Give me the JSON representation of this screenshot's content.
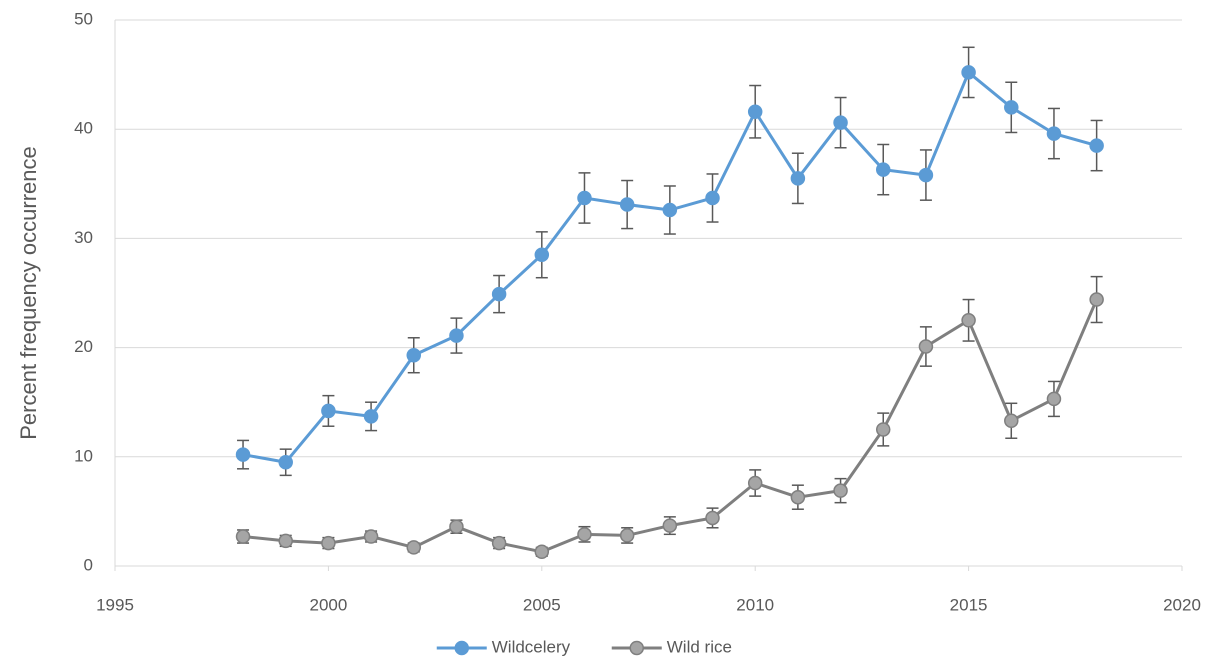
{
  "chart_data": {
    "type": "line",
    "y_label": "Percent frequency occurrence",
    "x": [
      1998,
      1999,
      2000,
      2001,
      2002,
      2003,
      2004,
      2005,
      2006,
      2007,
      2008,
      2009,
      2010,
      2011,
      2012,
      2013,
      2014,
      2015,
      2016,
      2017,
      2018
    ],
    "series": [
      {
        "name": "Wildcelery",
        "color": "#5b9bd5",
        "marker_color": "#5b9bd5",
        "values": [
          10.2,
          9.5,
          14.2,
          13.7,
          19.3,
          21.1,
          24.9,
          28.5,
          33.7,
          33.1,
          32.6,
          33.7,
          41.6,
          35.5,
          40.6,
          36.3,
          35.8,
          45.2,
          42.0,
          39.6,
          38.5
        ],
        "errors": [
          1.3,
          1.2,
          1.4,
          1.3,
          1.6,
          1.6,
          1.7,
          2.1,
          2.3,
          2.2,
          2.2,
          2.2,
          2.4,
          2.3,
          2.3,
          2.3,
          2.3,
          2.3,
          2.3,
          2.3,
          2.3
        ]
      },
      {
        "name": "Wild rice",
        "color": "#7f7f7f",
        "marker_color": "#a5a5a5",
        "values": [
          2.7,
          2.3,
          2.1,
          2.7,
          1.7,
          3.6,
          2.1,
          1.3,
          2.9,
          2.8,
          3.7,
          4.4,
          7.6,
          6.3,
          6.9,
          12.5,
          20.1,
          22.5,
          13.3,
          15.3,
          24.4
        ],
        "errors": [
          0.6,
          0.5,
          0.5,
          0.5,
          0.4,
          0.6,
          0.5,
          0.4,
          0.7,
          0.7,
          0.8,
          0.9,
          1.2,
          1.1,
          1.1,
          1.5,
          1.8,
          1.9,
          1.6,
          1.6,
          2.1
        ]
      }
    ],
    "error_color": "#595959",
    "xlim": [
      1995,
      2020
    ],
    "xticks": [
      1995,
      2000,
      2005,
      2010,
      2015,
      2020
    ],
    "ylim": [
      0,
      50
    ],
    "yticks": [
      0,
      10,
      20,
      30,
      40,
      50
    ],
    "grid": true,
    "legend": "bottom"
  }
}
